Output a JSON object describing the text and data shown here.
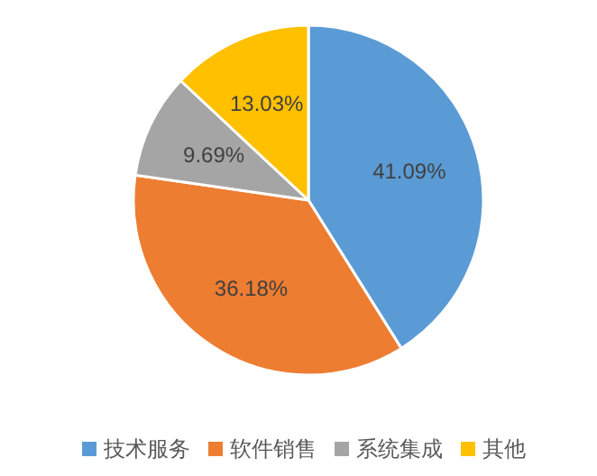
{
  "chart_data": {
    "type": "pie",
    "categories": [
      "技术服务",
      "软件销售",
      "系统集成",
      "其他"
    ],
    "values": [
      41.09,
      36.18,
      9.69,
      13.03
    ],
    "colors": [
      "#5b9bd5",
      "#ed7d31",
      "#a5a5a5",
      "#ffc000"
    ],
    "value_labels": [
      "41.09%",
      "36.18%",
      "9.69%",
      "13.03%"
    ],
    "legend": "bottom"
  }
}
